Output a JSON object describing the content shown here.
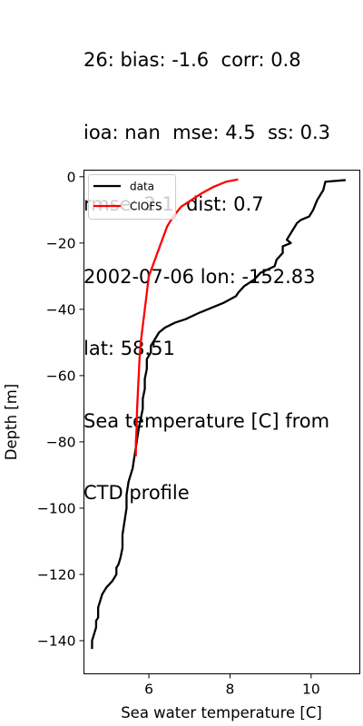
{
  "chart_data": {
    "type": "line",
    "title_lines": [
      "26: bias: -1.6  corr: 0.8",
      "ioa: nan  mse: 4.5  ss: 0.3",
      "rmse: 2.1  dist: 0.7",
      "2002-07-06 lon: -152.83",
      "lat: 58.51",
      "Sea temperature [C] from",
      "CTD profile"
    ],
    "xlabel": "Sea water temperature [C]",
    "ylabel": "Depth [m]",
    "xlim": [
      4.4,
      11.2
    ],
    "ylim": [
      -150,
      2
    ],
    "xticks": [
      6,
      8,
      10
    ],
    "yticks": [
      0,
      -20,
      -40,
      -60,
      -80,
      -100,
      -120,
      -140
    ],
    "grid": false,
    "legend_position": "upper-left",
    "colors": {
      "data": "#000000",
      "CIOFS": "#ff0000"
    },
    "series": [
      {
        "name": "data",
        "x": [
          10.85,
          10.35,
          10.3,
          10.15,
          10.05,
          9.95,
          9.75,
          9.65,
          9.55,
          9.4,
          9.5,
          9.3,
          9.3,
          9.15,
          9.1,
          8.75,
          8.6,
          8.35,
          8.2,
          8.15,
          7.85,
          7.25,
          6.9,
          6.65,
          6.4,
          6.25,
          6.15,
          6.05,
          6.05,
          5.95,
          5.95,
          5.9,
          5.9,
          5.85,
          5.85,
          5.8,
          5.75,
          5.7,
          5.65,
          5.6,
          5.5,
          5.45,
          5.45,
          5.4,
          5.35,
          5.35,
          5.3,
          5.25,
          5.2,
          5.2,
          5.1,
          4.95,
          4.85,
          4.8,
          4.75,
          4.75,
          4.7,
          4.7,
          4.65,
          4.6,
          4.6
        ],
        "y": [
          -1,
          -1.5,
          -4,
          -7,
          -10,
          -12,
          -13,
          -14,
          -16,
          -19,
          -20,
          -21,
          -23,
          -25,
          -27,
          -29,
          -31,
          -33,
          -35,
          -36,
          -38,
          -41,
          -43,
          -44,
          -45.5,
          -47,
          -49,
          -51,
          -53,
          -55,
          -58,
          -61,
          -64,
          -67,
          -70,
          -73,
          -76,
          -80,
          -84,
          -88,
          -92,
          -96,
          -100,
          -104,
          -108,
          -112,
          -115,
          -117,
          -118,
          -120,
          -122,
          -124,
          -126,
          -128,
          -130,
          -133,
          -134,
          -136,
          -138,
          -140,
          -142.5
        ]
      },
      {
        "name": "CIOFS",
        "x": [
          8.2,
          7.9,
          7.6,
          7.3,
          7.05,
          6.8,
          6.6,
          6.45,
          6.3,
          6.15,
          6.0,
          5.95,
          5.9,
          5.85,
          5.8,
          5.77,
          5.75,
          5.73,
          5.71,
          5.7,
          5.69,
          5.68,
          5.68,
          5.68
        ],
        "y": [
          -0.8,
          -1.5,
          -3,
          -5,
          -7,
          -9,
          -12,
          -15,
          -20,
          -25,
          -30,
          -35,
          -40,
          -45,
          -50,
          -55,
          -60,
          -65,
          -70,
          -75,
          -78,
          -80,
          -82,
          -84.3
        ]
      }
    ]
  }
}
